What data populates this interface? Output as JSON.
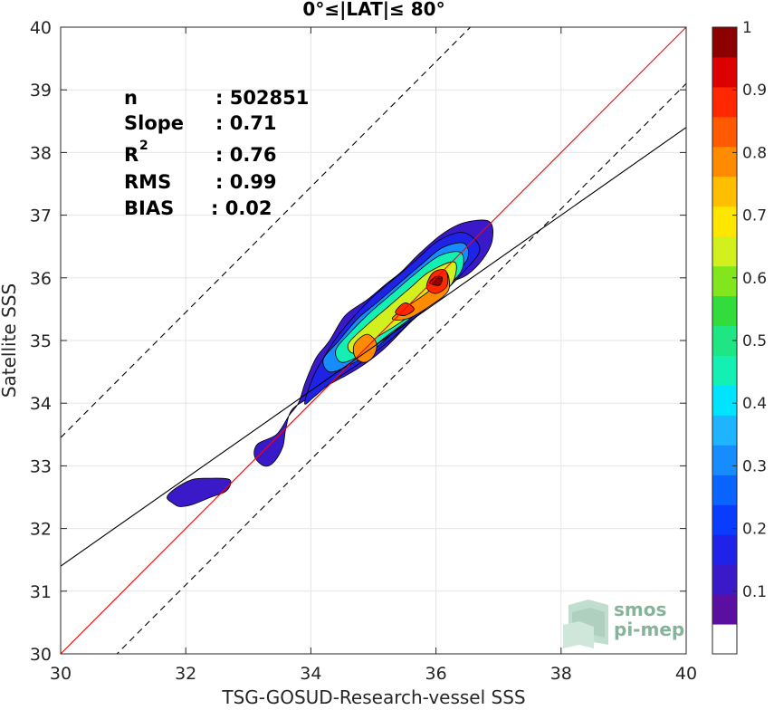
{
  "chart_data": {
    "type": "heatmap",
    "subtype": "filled-contour density scatter",
    "title": "0°≤|LAT|≤ 80°",
    "xlabel": "TSG-GOSUD-Research-vessel SSS",
    "ylabel": "Satellite SSS",
    "xlim": [
      30,
      40
    ],
    "ylim": [
      30,
      40
    ],
    "xticks": [
      "30",
      "32",
      "34",
      "36",
      "38",
      "40"
    ],
    "yticks": [
      "30",
      "31",
      "32",
      "33",
      "34",
      "35",
      "36",
      "37",
      "38",
      "39",
      "40"
    ],
    "grid": true,
    "stats": [
      {
        "label": "n",
        "value": ": 502851"
      },
      {
        "label": "Slope",
        "value": ": 0.71"
      },
      {
        "label": "R",
        "sup": "2",
        "value": ": 0.76"
      },
      {
        "label": "RMS",
        "value": ": 0.99"
      },
      {
        "label": "BIAS",
        "value": ": 0.02"
      }
    ],
    "lines": [
      {
        "name": "1:1",
        "style": "solid",
        "color": "#ff0000",
        "slope": 1,
        "intercept": 0
      },
      {
        "name": "regression",
        "style": "solid",
        "color": "#000000",
        "slope": 0.7,
        "intercept": 10.4
      },
      {
        "name": "upper-bound",
        "style": "dashed",
        "color": "#000000",
        "slope": 1,
        "intercept": 3.45
      },
      {
        "name": "lower-bound",
        "style": "dashed",
        "color": "#000000",
        "slope": 1,
        "intercept": -0.9
      }
    ],
    "colorbar": {
      "ticks": [
        "0.1",
        "0.2",
        "0.3",
        "0.4",
        "0.5",
        "0.6",
        "0.7",
        "0.8",
        "0.9",
        "1"
      ],
      "range": [
        0,
        1
      ],
      "levels": [
        0,
        0.05,
        0.1,
        0.15,
        0.2,
        0.25,
        0.3,
        0.35,
        0.4,
        0.45,
        0.5,
        0.55,
        0.6,
        0.65,
        0.7,
        0.75,
        0.8,
        0.85,
        0.9,
        0.95,
        1
      ],
      "colors": [
        "#ffffff",
        "#5a0fa0",
        "#3a1ac8",
        "#1f23e8",
        "#0a3cff",
        "#0a64ff",
        "#168cff",
        "#1eb4ff",
        "#00e4ff",
        "#14f0b4",
        "#1ee682",
        "#32dc3c",
        "#82e61e",
        "#d2f01e",
        "#ffe600",
        "#ffbe00",
        "#ff8c00",
        "#ff5a00",
        "#ff2800",
        "#dc0000",
        "#8c0000"
      ]
    },
    "contours": [
      {
        "level": 0.05,
        "points": [
          [
            31.8,
            32.4
          ],
          [
            31.7,
            32.5
          ],
          [
            31.85,
            32.65
          ],
          [
            32.1,
            32.78
          ],
          [
            32.35,
            32.8
          ],
          [
            32.7,
            32.78
          ],
          [
            32.65,
            32.6
          ],
          [
            32.4,
            32.5
          ],
          [
            32.1,
            32.38
          ],
          [
            31.9,
            32.35
          ]
        ]
      },
      {
        "level": 0.05,
        "points": [
          [
            33.25,
            33.0
          ],
          [
            33.1,
            33.15
          ],
          [
            33.15,
            33.35
          ],
          [
            33.45,
            33.5
          ],
          [
            33.65,
            33.8
          ],
          [
            33.8,
            34.0
          ],
          [
            33.9,
            34.3
          ],
          [
            34.0,
            34.55
          ],
          [
            34.1,
            34.75
          ],
          [
            34.3,
            35.0
          ],
          [
            34.55,
            35.4
          ],
          [
            34.9,
            35.65
          ],
          [
            35.2,
            35.9
          ],
          [
            35.45,
            36.1
          ],
          [
            35.75,
            36.4
          ],
          [
            36.1,
            36.7
          ],
          [
            36.45,
            36.88
          ],
          [
            36.85,
            36.9
          ],
          [
            36.9,
            36.6
          ],
          [
            36.75,
            36.3
          ],
          [
            36.5,
            36.05
          ],
          [
            36.2,
            35.9
          ],
          [
            35.85,
            35.55
          ],
          [
            35.5,
            35.2
          ],
          [
            35.15,
            34.85
          ],
          [
            34.75,
            34.55
          ],
          [
            34.3,
            34.3
          ],
          [
            34.0,
            34.1
          ],
          [
            33.7,
            33.9
          ],
          [
            33.6,
            33.6
          ],
          [
            33.55,
            33.3
          ],
          [
            33.4,
            33.05
          ]
        ]
      },
      {
        "level": 0.1,
        "points": [
          [
            33.9,
            34.0
          ],
          [
            34.05,
            34.45
          ],
          [
            34.25,
            34.8
          ],
          [
            34.45,
            35.1
          ],
          [
            34.75,
            35.45
          ],
          [
            35.05,
            35.75
          ],
          [
            35.35,
            36.0
          ],
          [
            35.7,
            36.3
          ],
          [
            36.05,
            36.6
          ],
          [
            36.45,
            36.72
          ],
          [
            36.7,
            36.45
          ],
          [
            36.4,
            36.05
          ],
          [
            36.0,
            35.65
          ],
          [
            35.6,
            35.3
          ],
          [
            35.2,
            34.95
          ],
          [
            34.8,
            34.65
          ],
          [
            34.35,
            34.35
          ],
          [
            34.05,
            34.1
          ]
        ]
      },
      {
        "level": 0.25,
        "points": [
          [
            34.2,
            34.7
          ],
          [
            34.45,
            35.0
          ],
          [
            34.75,
            35.35
          ],
          [
            35.05,
            35.6
          ],
          [
            35.4,
            35.9
          ],
          [
            35.75,
            36.2
          ],
          [
            36.1,
            36.48
          ],
          [
            36.45,
            36.55
          ],
          [
            36.5,
            36.3
          ],
          [
            36.2,
            35.95
          ],
          [
            35.8,
            35.55
          ],
          [
            35.4,
            35.2
          ],
          [
            35.0,
            34.85
          ],
          [
            34.6,
            34.6
          ],
          [
            34.3,
            34.5
          ]
        ]
      },
      {
        "level": 0.4,
        "points": [
          [
            34.4,
            34.85
          ],
          [
            34.65,
            35.15
          ],
          [
            34.95,
            35.45
          ],
          [
            35.3,
            35.75
          ],
          [
            35.65,
            36.05
          ],
          [
            36.05,
            36.35
          ],
          [
            36.4,
            36.4
          ],
          [
            36.4,
            36.1
          ],
          [
            36.05,
            35.75
          ],
          [
            35.65,
            35.4
          ],
          [
            35.25,
            35.1
          ],
          [
            34.85,
            34.8
          ],
          [
            34.5,
            34.65
          ]
        ]
      },
      {
        "level": 0.6,
        "points": [
          [
            34.6,
            34.95
          ],
          [
            34.9,
            35.25
          ],
          [
            35.25,
            35.55
          ],
          [
            35.6,
            35.85
          ],
          [
            35.9,
            36.1
          ],
          [
            36.3,
            36.25
          ],
          [
            36.25,
            35.9
          ],
          [
            35.9,
            35.65
          ],
          [
            35.45,
            35.3
          ],
          [
            35.05,
            35.05
          ],
          [
            34.7,
            34.8
          ]
        ]
      },
      {
        "level": 0.75,
        "points": [
          [
            34.7,
            34.75
          ],
          [
            34.7,
            34.95
          ],
          [
            34.9,
            35.1
          ],
          [
            35.05,
            34.95
          ],
          [
            35.0,
            34.75
          ],
          [
            34.85,
            34.65
          ]
        ]
      },
      {
        "level": 0.75,
        "points": [
          [
            35.3,
            35.35
          ],
          [
            35.55,
            35.55
          ],
          [
            35.9,
            35.8
          ],
          [
            36.15,
            36.1
          ],
          [
            36.2,
            35.8
          ],
          [
            35.9,
            35.55
          ],
          [
            35.55,
            35.35
          ]
        ]
      },
      {
        "level": 0.85,
        "points": [
          [
            35.85,
            35.85
          ],
          [
            35.95,
            36.08
          ],
          [
            36.15,
            36.12
          ],
          [
            36.18,
            35.88
          ],
          [
            36.0,
            35.75
          ]
        ]
      },
      {
        "level": 0.85,
        "points": [
          [
            35.35,
            35.45
          ],
          [
            35.5,
            35.6
          ],
          [
            35.65,
            35.5
          ],
          [
            35.5,
            35.4
          ]
        ]
      },
      {
        "level": 0.95,
        "points": [
          [
            35.9,
            35.92
          ],
          [
            36.0,
            36.02
          ],
          [
            36.1,
            36.0
          ],
          [
            36.05,
            35.88
          ]
        ]
      }
    ],
    "logo": [
      "smos",
      "pi-mep"
    ]
  }
}
